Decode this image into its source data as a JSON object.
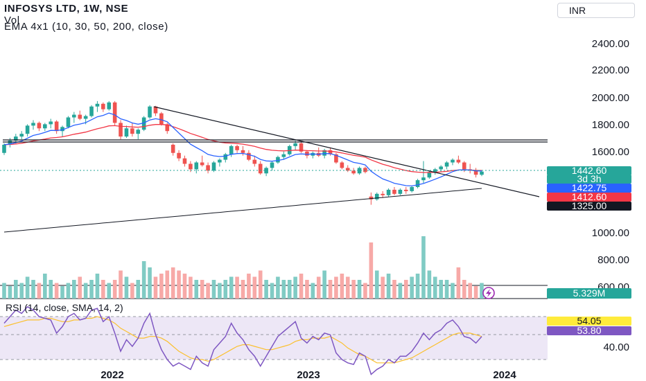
{
  "header": {
    "title": "INFOSYS LTD, 1W, NSE",
    "volume_label": "Vol",
    "ema_label": "EMA 4x1 (10, 30, 50, 200, close)"
  },
  "currency_button": "INR",
  "rsi_label": "RSI (14, close, SMA, 14, 2)",
  "colors": {
    "up": "#26a69a",
    "down": "#ef5350",
    "ema10": "#2962ff",
    "ema30": "#f23645",
    "ema200": "#131722",
    "rsi_line": "#7e57c2",
    "rsi_sma": "#fbc02d",
    "rsi_band": "#ede7f6"
  },
  "price_axis": [
    "2400.00",
    "2200.00",
    "2000.00",
    "1800.00",
    "1600.00",
    "1000.00",
    "800.00",
    "600.00"
  ],
  "rsi_axis": [
    "40.00"
  ],
  "time_axis": [
    "2022",
    "2023",
    "2024"
  ],
  "price_tags": {
    "last_price": "1442.60",
    "countdown": "3d 3h",
    "ema_blue": "1422.75",
    "ema_red": "1412.60",
    "ema_dark": "1325.00",
    "volume": "5.329M",
    "rsi": "54.05",
    "rsi_sma": "53.80"
  },
  "chart_data": {
    "type": "candlestick",
    "title": "INFOSYS LTD, 1W, NSE",
    "ylim": [
      500,
      2600
    ],
    "rsi_ylim": [
      30,
      75
    ],
    "horizontal_levels": [
      1660,
      1670
    ],
    "trendline": [
      {
        "x": 0.22,
        "y": 1920
      },
      {
        "x": 0.83,
        "y": 1340
      }
    ],
    "ohlc": [
      [
        1580,
        1650,
        1565,
        1640
      ],
      [
        1640,
        1690,
        1620,
        1670
      ],
      [
        1670,
        1720,
        1650,
        1700
      ],
      [
        1700,
        1740,
        1680,
        1720
      ],
      [
        1720,
        1790,
        1700,
        1780
      ],
      [
        1780,
        1820,
        1750,
        1800
      ],
      [
        1800,
        1810,
        1740,
        1760
      ],
      [
        1760,
        1800,
        1740,
        1790
      ],
      [
        1790,
        1830,
        1760,
        1810
      ],
      [
        1810,
        1820,
        1720,
        1740
      ],
      [
        1740,
        1780,
        1700,
        1770
      ],
      [
        1770,
        1850,
        1760,
        1840
      ],
      [
        1840,
        1880,
        1800,
        1860
      ],
      [
        1860,
        1890,
        1820,
        1830
      ],
      [
        1830,
        1860,
        1790,
        1850
      ],
      [
        1850,
        1930,
        1840,
        1920
      ],
      [
        1920,
        1960,
        1880,
        1940
      ],
      [
        1940,
        1950,
        1880,
        1900
      ],
      [
        1900,
        1960,
        1890,
        1950
      ],
      [
        1950,
        1960,
        1780,
        1800
      ],
      [
        1800,
        1820,
        1680,
        1700
      ],
      [
        1700,
        1780,
        1690,
        1760
      ],
      [
        1760,
        1800,
        1700,
        1720
      ],
      [
        1720,
        1760,
        1680,
        1750
      ],
      [
        1750,
        1850,
        1740,
        1840
      ],
      [
        1840,
        1930,
        1830,
        1920
      ],
      [
        1920,
        1925,
        1850,
        1870
      ],
      [
        1870,
        1880,
        1780,
        1790
      ],
      [
        1790,
        1800,
        1720,
        1740
      ],
      [
        1640,
        1650,
        1560,
        1580
      ],
      [
        1580,
        1600,
        1520,
        1540
      ],
      [
        1540,
        1560,
        1480,
        1500
      ],
      [
        1500,
        1520,
        1440,
        1460
      ],
      [
        1460,
        1520,
        1430,
        1510
      ],
      [
        1510,
        1560,
        1480,
        1490
      ],
      [
        1490,
        1510,
        1430,
        1450
      ],
      [
        1450,
        1520,
        1440,
        1510
      ],
      [
        1510,
        1540,
        1480,
        1530
      ],
      [
        1530,
        1580,
        1510,
        1570
      ],
      [
        1570,
        1640,
        1550,
        1630
      ],
      [
        1630,
        1640,
        1580,
        1600
      ],
      [
        1600,
        1630,
        1560,
        1580
      ],
      [
        1580,
        1600,
        1520,
        1530
      ],
      [
        1530,
        1560,
        1480,
        1500
      ],
      [
        1500,
        1520,
        1420,
        1430
      ],
      [
        1430,
        1480,
        1410,
        1470
      ],
      [
        1470,
        1520,
        1450,
        1510
      ],
      [
        1510,
        1560,
        1500,
        1550
      ],
      [
        1550,
        1590,
        1530,
        1570
      ],
      [
        1570,
        1640,
        1560,
        1630
      ],
      [
        1630,
        1670,
        1600,
        1650
      ],
      [
        1650,
        1660,
        1580,
        1590
      ],
      [
        1590,
        1600,
        1540,
        1560
      ],
      [
        1560,
        1590,
        1540,
        1580
      ],
      [
        1580,
        1620,
        1550,
        1560
      ],
      [
        1560,
        1610,
        1540,
        1600
      ],
      [
        1600,
        1620,
        1560,
        1570
      ],
      [
        1570,
        1580,
        1500,
        1510
      ],
      [
        1510,
        1520,
        1460,
        1470
      ],
      [
        1470,
        1490,
        1440,
        1450
      ],
      [
        1450,
        1470,
        1420,
        1430
      ],
      [
        1430,
        1480,
        1420,
        1470
      ],
      [
        1470,
        1480,
        1430,
        1440
      ],
      [
        1260,
        1290,
        1200,
        1240
      ],
      [
        1240,
        1290,
        1230,
        1280
      ],
      [
        1280,
        1300,
        1250,
        1270
      ],
      [
        1270,
        1320,
        1260,
        1310
      ],
      [
        1310,
        1330,
        1270,
        1280
      ],
      [
        1280,
        1320,
        1270,
        1310
      ],
      [
        1310,
        1330,
        1280,
        1300
      ],
      [
        1300,
        1340,
        1290,
        1330
      ],
      [
        1330,
        1390,
        1320,
        1380
      ],
      [
        1380,
        1520,
        1360,
        1400
      ],
      [
        1400,
        1450,
        1390,
        1440
      ],
      [
        1440,
        1470,
        1420,
        1460
      ],
      [
        1460,
        1490,
        1440,
        1480
      ],
      [
        1480,
        1520,
        1460,
        1510
      ],
      [
        1510,
        1540,
        1490,
        1530
      ],
      [
        1530,
        1560,
        1500,
        1510
      ],
      [
        1510,
        1520,
        1440,
        1460
      ],
      [
        1460,
        1500,
        1430,
        1450
      ],
      [
        1450,
        1470,
        1400,
        1420
      ],
      [
        1420,
        1450,
        1410,
        1443
      ]
    ],
    "rsi_values": [
      62,
      66,
      70,
      68,
      72,
      70,
      66,
      65,
      64,
      56,
      60,
      66,
      68,
      64,
      65,
      70,
      71,
      63,
      66,
      56,
      45,
      52,
      48,
      53,
      62,
      68,
      55,
      46,
      40,
      36,
      38,
      36,
      34,
      42,
      38,
      36,
      46,
      50,
      54,
      62,
      56,
      52,
      46,
      42,
      36,
      42,
      48,
      54,
      57,
      60,
      63,
      53,
      50,
      54,
      52,
      56,
      55,
      44,
      40,
      38,
      37,
      44,
      42,
      31,
      34,
      36,
      40,
      38,
      42,
      42,
      45,
      50,
      56,
      52,
      56,
      58,
      62,
      64,
      60,
      54,
      53,
      50,
      54
    ],
    "rsi_sma_values": [
      60,
      61,
      62,
      63,
      64,
      64,
      64,
      65,
      65,
      64,
      63,
      63,
      64,
      64,
      65,
      65,
      66,
      65,
      64,
      62,
      59,
      57,
      55,
      53,
      53,
      54,
      54,
      53,
      51,
      48,
      45,
      43,
      41,
      40,
      40,
      39,
      40,
      42,
      44,
      46,
      48,
      49,
      49,
      48,
      47,
      46,
      46,
      47,
      48,
      49,
      51,
      52,
      52,
      53,
      53,
      53,
      54,
      52,
      50,
      47,
      45,
      43,
      42,
      40,
      38,
      38,
      38,
      38,
      39,
      40,
      41,
      43,
      45,
      47,
      49,
      51,
      53,
      55,
      56,
      56,
      56,
      55,
      54
    ],
    "volume_values": [
      5,
      4,
      6,
      5,
      7,
      6,
      5,
      8,
      6,
      5,
      4,
      5,
      6,
      7,
      5,
      6,
      8,
      6,
      5,
      6,
      9,
      7,
      5,
      6,
      12,
      10,
      7,
      8,
      9,
      10,
      9,
      8,
      7,
      6,
      6,
      5,
      6,
      5,
      6,
      7,
      7,
      6,
      8,
      7,
      9,
      6,
      5,
      7,
      6,
      6,
      7,
      8,
      6,
      5,
      7,
      9,
      6,
      7,
      8,
      7,
      6,
      6,
      5,
      18,
      9,
      7,
      8,
      6,
      5,
      6,
      7,
      8,
      20,
      9,
      7,
      6,
      6,
      5,
      10,
      6,
      5,
      4,
      5
    ]
  }
}
